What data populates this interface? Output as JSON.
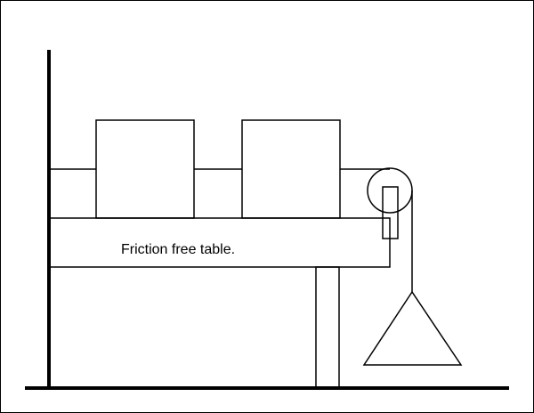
{
  "diagram": {
    "table_label": "Friction free table."
  }
}
